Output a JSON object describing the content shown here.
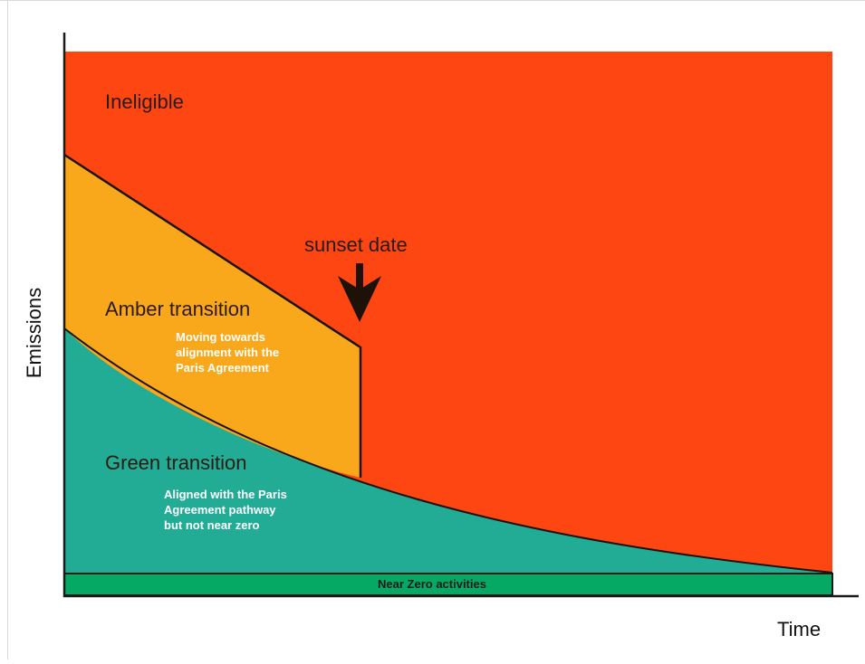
{
  "diagram": {
    "zones": {
      "ineligible": {
        "label": "Ineligible",
        "color": "#fd4612"
      },
      "amber": {
        "label": "Amber transition",
        "description": [
          "Moving towards",
          "alignment with the",
          "Paris Agreement"
        ],
        "color": "#f9a81b"
      },
      "green": {
        "label": "Green transition",
        "description": [
          "Aligned with the Paris",
          "Agreement pathway",
          "but not near zero"
        ],
        "color": "#22ac96"
      },
      "near_zero": {
        "label": "Near Zero activities",
        "color": "#06a963"
      }
    },
    "annotation": {
      "label": "sunset date",
      "icon": "down-arrow-icon"
    },
    "axes": {
      "y_title": "Emissions",
      "x_title": "Time"
    }
  }
}
